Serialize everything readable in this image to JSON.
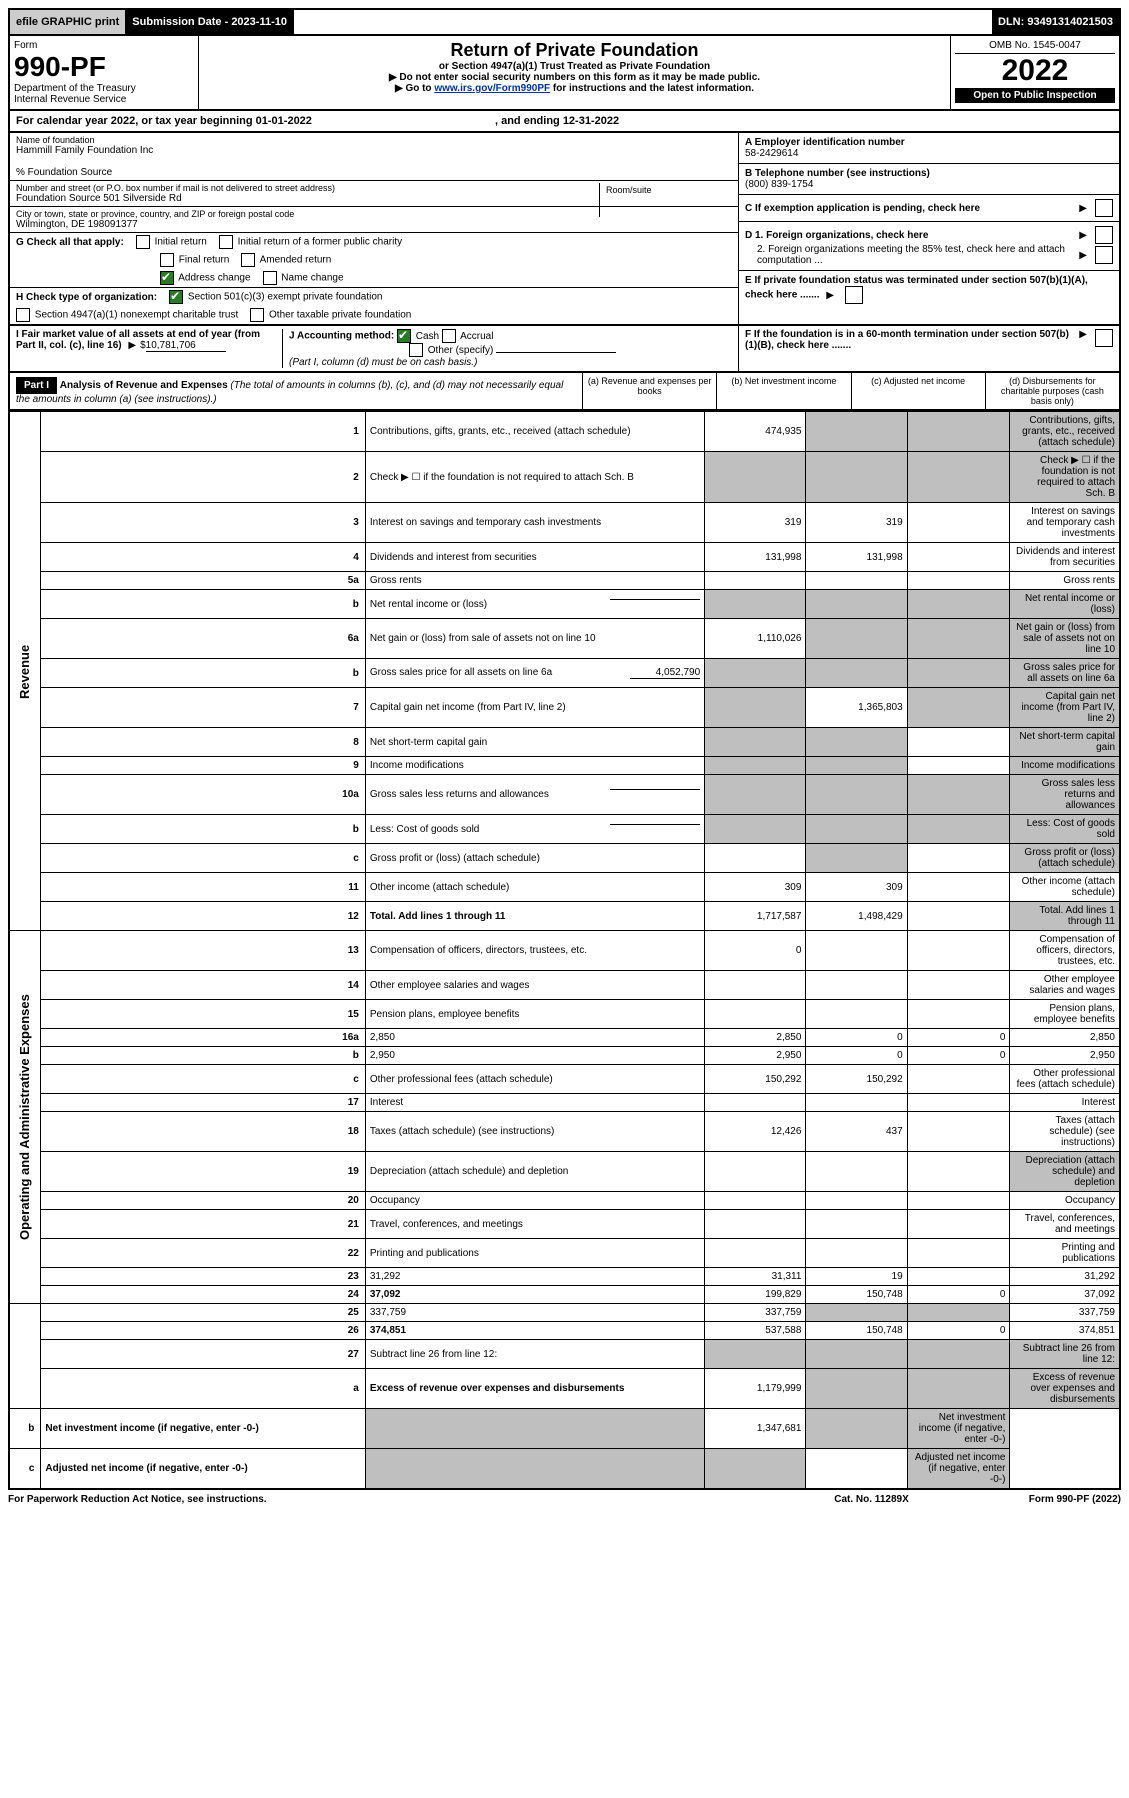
{
  "topbar": {
    "efile": "efile GRAPHIC print",
    "submission": "Submission Date - 2023-11-10",
    "dln": "DLN: 93491314021503"
  },
  "header": {
    "form_label": "Form",
    "form_number": "990-PF",
    "dept": "Department of the Treasury",
    "irs": "Internal Revenue Service",
    "title": "Return of Private Foundation",
    "subtitle": "or Section 4947(a)(1) Trust Treated as Private Foundation",
    "note1": "▶ Do not enter social security numbers on this form as it may be made public.",
    "note2_pre": "▶ Go to ",
    "note2_link": "www.irs.gov/Form990PF",
    "note2_post": " for instructions and the latest information.",
    "omb": "OMB No. 1545-0047",
    "year": "2022",
    "open": "Open to Public Inspection"
  },
  "calyear": "For calendar year 2022, or tax year beginning 01-01-2022",
  "calyear_end": ", and ending 12-31-2022",
  "entity": {
    "name_label": "Name of foundation",
    "name": "Hammill Family Foundation Inc",
    "careof": "% Foundation Source",
    "addr_label": "Number and street (or P.O. box number if mail is not delivered to street address)",
    "addr": "Foundation Source 501 Silverside Rd",
    "room_label": "Room/suite",
    "city_label": "City or town, state or province, country, and ZIP or foreign postal code",
    "city": "Wilmington, DE  198091377",
    "a_label": "A Employer identification number",
    "a_val": "58-2429614",
    "b_label": "B Telephone number (see instructions)",
    "b_val": "(800) 839-1754",
    "c_label": "C If exemption application is pending, check here",
    "d1_label": "D 1. Foreign organizations, check here",
    "d2_label": "2. Foreign organizations meeting the 85% test, check here and attach computation ...",
    "e_label": "E  If private foundation status was terminated under section 507(b)(1)(A), check here .......",
    "f_label": "F  If the foundation is in a 60-month termination under section 507(b)(1)(B), check here ......."
  },
  "g": {
    "label": "G Check all that apply:",
    "opt1": "Initial return",
    "opt2": "Initial return of a former public charity",
    "opt3": "Final return",
    "opt4": "Amended return",
    "opt5": "Address change",
    "opt6": "Name change"
  },
  "h": {
    "label": "H Check type of organization:",
    "opt1": "Section 501(c)(3) exempt private foundation",
    "opt2": "Section 4947(a)(1) nonexempt charitable trust",
    "opt3": "Other taxable private foundation"
  },
  "i": {
    "label": "I Fair market value of all assets at end of year (from Part II, col. (c), line 16)",
    "val": "10,781,706"
  },
  "j": {
    "label": "J Accounting method:",
    "cash": "Cash",
    "accrual": "Accrual",
    "other": "Other (specify)",
    "note": "(Part I, column (d) must be on cash basis.)"
  },
  "part1": {
    "header": "Part I",
    "title": "Analysis of Revenue and Expenses",
    "title_note": " (The total of amounts in columns (b), (c), and (d) may not necessarily equal the amounts in column (a) (see instructions).)",
    "col_a": "(a)  Revenue and expenses per books",
    "col_b": "(b)  Net investment income",
    "col_c": "(c)  Adjusted net income",
    "col_d": "(d)  Disbursements for charitable purposes (cash basis only)"
  },
  "sections": {
    "rev": "Revenue",
    "exp": "Operating and Administrative Expenses"
  },
  "rows": [
    {
      "n": "1",
      "d": "Contributions, gifts, grants, etc., received (attach schedule)",
      "a": "474,935",
      "b_sh": true,
      "c_sh": true,
      "d_sh": true
    },
    {
      "n": "2",
      "d": "Check ▶ ☐ if the foundation is not required to attach Sch. B",
      "all_sh": true
    },
    {
      "n": "3",
      "d": "Interest on savings and temporary cash investments",
      "a": "319",
      "b": "319"
    },
    {
      "n": "4",
      "d": "Dividends and interest from securities",
      "a": "131,998",
      "b": "131,998"
    },
    {
      "n": "5a",
      "d": "Gross rents"
    },
    {
      "n": "b",
      "d": "Net rental income or (loss)",
      "inline": true,
      "all_sh": true
    },
    {
      "n": "6a",
      "d": "Net gain or (loss) from sale of assets not on line 10",
      "a": "1,110,026",
      "b_sh": true,
      "c_sh": true,
      "d_sh": true
    },
    {
      "n": "b",
      "d": "Gross sales price for all assets on line 6a",
      "inline_val": "4,052,790",
      "all_sh": true
    },
    {
      "n": "7",
      "d": "Capital gain net income (from Part IV, line 2)",
      "a_sh": true,
      "b": "1,365,803",
      "c_sh": true,
      "d_sh": true
    },
    {
      "n": "8",
      "d": "Net short-term capital gain",
      "a_sh": true,
      "b_sh": true,
      "d_sh": true
    },
    {
      "n": "9",
      "d": "Income modifications",
      "a_sh": true,
      "b_sh": true,
      "d_sh": true
    },
    {
      "n": "10a",
      "d": "Gross sales less returns and allowances",
      "inline": true,
      "all_sh": true
    },
    {
      "n": "b",
      "d": "Less: Cost of goods sold",
      "inline": true,
      "all_sh": true
    },
    {
      "n": "c",
      "d": "Gross profit or (loss) (attach schedule)",
      "b_sh": true,
      "d_sh": true
    },
    {
      "n": "11",
      "d": "Other income (attach schedule)",
      "a": "309",
      "b": "309"
    },
    {
      "n": "12",
      "d": "Total. Add lines 1 through 11",
      "bold": true,
      "a": "1,717,587",
      "b": "1,498,429",
      "d_sh": true
    },
    {
      "n": "13",
      "d": "Compensation of officers, directors, trustees, etc.",
      "a": "0"
    },
    {
      "n": "14",
      "d": "Other employee salaries and wages"
    },
    {
      "n": "15",
      "d": "Pension plans, employee benefits"
    },
    {
      "n": "16a",
      "d": "2,850",
      "a": "2,850",
      "b": "0",
      "c": "0"
    },
    {
      "n": "b",
      "d": "2,950",
      "a": "2,950",
      "b": "0",
      "c": "0"
    },
    {
      "n": "c",
      "d": "Other professional fees (attach schedule)",
      "a": "150,292",
      "b": "150,292"
    },
    {
      "n": "17",
      "d": "Interest"
    },
    {
      "n": "18",
      "d": "Taxes (attach schedule) (see instructions)",
      "a": "12,426",
      "b": "437"
    },
    {
      "n": "19",
      "d": "Depreciation (attach schedule) and depletion",
      "d_sh": true
    },
    {
      "n": "20",
      "d": "Occupancy"
    },
    {
      "n": "21",
      "d": "Travel, conferences, and meetings"
    },
    {
      "n": "22",
      "d": "Printing and publications"
    },
    {
      "n": "23",
      "d": "31,292",
      "a": "31,311",
      "b": "19"
    },
    {
      "n": "24",
      "d": "37,092",
      "bold": true,
      "a": "199,829",
      "b": "150,748",
      "c": "0"
    },
    {
      "n": "25",
      "d": "337,759",
      "a": "337,759",
      "b_sh": true,
      "c_sh": true
    },
    {
      "n": "26",
      "d": "374,851",
      "bold": true,
      "a": "537,588",
      "b": "150,748",
      "c": "0"
    },
    {
      "n": "27",
      "d": "Subtract line 26 from line 12:",
      "all_sh": true
    },
    {
      "n": "a",
      "d": "Excess of revenue over expenses and disbursements",
      "bold": true,
      "a": "1,179,999",
      "b_sh": true,
      "c_sh": true,
      "d_sh": true
    },
    {
      "n": "b",
      "d": "Net investment income (if negative, enter -0-)",
      "bold": true,
      "a_sh": true,
      "b": "1,347,681",
      "c_sh": true,
      "d_sh": true
    },
    {
      "n": "c",
      "d": "Adjusted net income (if negative, enter -0-)",
      "bold": true,
      "a_sh": true,
      "b_sh": true,
      "d_sh": true
    }
  ],
  "footer": {
    "left": "For Paperwork Reduction Act Notice, see instructions.",
    "mid": "Cat. No. 11289X",
    "right": "Form 990-PF (2022)"
  }
}
